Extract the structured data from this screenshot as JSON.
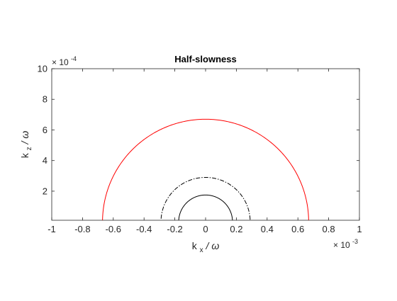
{
  "chart_data": {
    "type": "line",
    "title": "Half-slowness",
    "xlabel": {
      "main": "k",
      "sub": "x",
      "rest": " / ω"
    },
    "ylabel": {
      "main": "k",
      "sub": "z",
      "rest": " / ω"
    },
    "x_exponent": {
      "base": "× 10",
      "power": "-3"
    },
    "y_exponent": {
      "base": "× 10",
      "power": "-4"
    },
    "xlim": [
      -0.001,
      0.001
    ],
    "ylim": [
      1e-05,
      0.001
    ],
    "x_ticks": [
      -0.001,
      -0.0008,
      -0.0006,
      -0.0004,
      -0.0002,
      0,
      0.0002,
      0.0004,
      0.0006,
      0.0008,
      0.001
    ],
    "x_tick_labels": [
      "-1",
      "-0.8",
      "-0.6",
      "-0.4",
      "-0.2",
      "0",
      "0.2",
      "0.4",
      "0.6",
      "0.8",
      "1"
    ],
    "y_ticks": [
      0.0002,
      0.0004,
      0.0006,
      0.0008,
      0.001
    ],
    "y_tick_labels": [
      "2",
      "4",
      "6",
      "8",
      "10"
    ],
    "grid": false,
    "series": [
      {
        "curve": "semicircle",
        "radius": 0.00067,
        "color": "#ff0000",
        "line_style": "solid"
      },
      {
        "curve": "semicircle",
        "radius": 0.00029,
        "color": "#000000",
        "line_style": "dash-dot"
      },
      {
        "curve": "semicircle",
        "radius": 0.000175,
        "color": "#000000",
        "line_style": "solid"
      }
    ]
  }
}
